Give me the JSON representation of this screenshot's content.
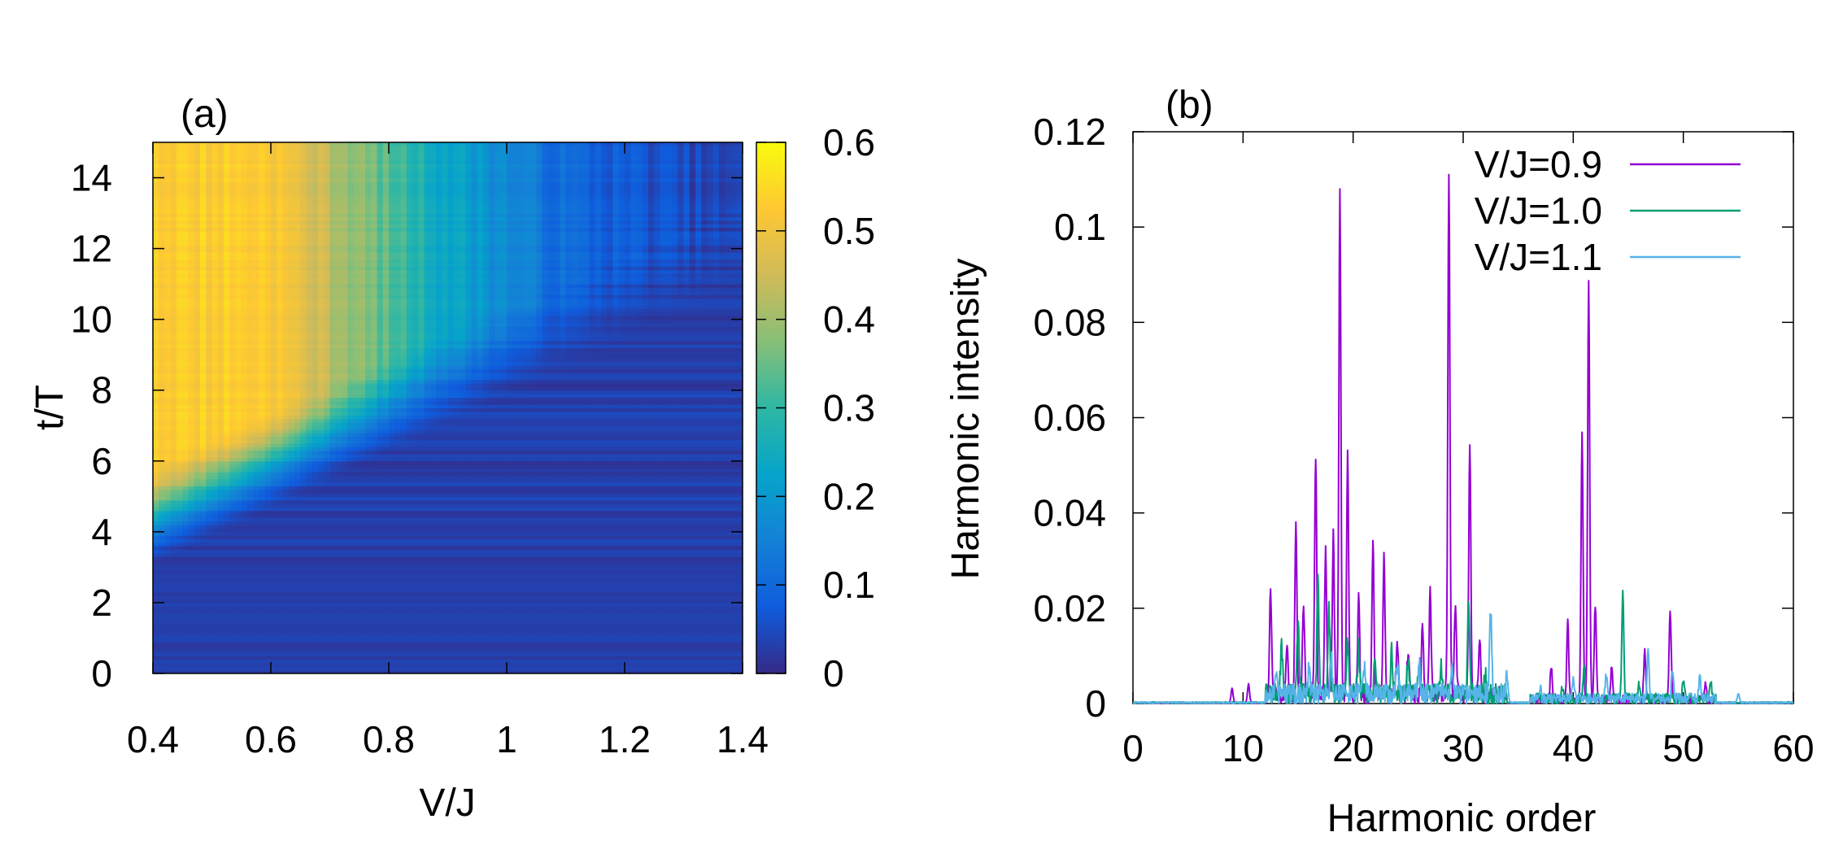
{
  "chart_data": [
    {
      "panel_label": "(a)",
      "type": "heatmap",
      "title": "",
      "xlabel": "V/J",
      "ylabel": "t/T",
      "xlim": [
        0.4,
        1.4
      ],
      "ylim": [
        0,
        15
      ],
      "x_ticks": [
        0.4,
        0.6,
        0.8,
        1.0,
        1.2,
        1.4
      ],
      "x_tick_labels": [
        "0.4",
        "0.6",
        "0.8",
        "1",
        "1.2",
        "1.4"
      ],
      "y_ticks": [
        0,
        2,
        4,
        6,
        8,
        10,
        12,
        14
      ],
      "y_tick_labels": [
        "0",
        "2",
        "4",
        "6",
        "8",
        "10",
        "12",
        "14"
      ],
      "colorbar": {
        "range": [
          0,
          0.6
        ],
        "ticks": [
          0,
          0.1,
          0.2,
          0.3,
          0.4,
          0.5,
          0.6
        ],
        "tick_labels": [
          "0",
          "0.1",
          "0.2",
          "0.3",
          "0.4",
          "0.5",
          "0.6"
        ],
        "colormap": [
          "#352a87",
          "#0f5cdd",
          "#1481d6",
          "#06a4ca",
          "#2eb7a4",
          "#87bf77",
          "#d1bb59",
          "#fec832",
          "#f9fb0e"
        ]
      },
      "data_description": {
        "plateau_value": 0.53,
        "onset_t_at_left": 4.5,
        "onset_slope_t_per_VJ": 13,
        "plateau_edge_VJ": [
          0.6,
          0.88,
          1.1
        ],
        "low_value_region_value": 0.03
      }
    },
    {
      "panel_label": "(b)",
      "type": "line",
      "title": "",
      "xlabel": "Harmonic order",
      "ylabel": "Harmonic intensity",
      "xlim": [
        0,
        60
      ],
      "ylim": [
        0,
        0.12
      ],
      "x_ticks": [
        0,
        10,
        20,
        30,
        40,
        50,
        60
      ],
      "x_tick_labels": [
        "0",
        "10",
        "20",
        "30",
        "40",
        "50",
        "60"
      ],
      "y_ticks": [
        0,
        0.02,
        0.04,
        0.06,
        0.08,
        0.1,
        0.12
      ],
      "y_tick_labels": [
        "0",
        "0.02",
        "0.04",
        "0.06",
        "0.08",
        "0.1",
        "0.12"
      ],
      "legend_position": "top-right",
      "series": [
        {
          "name": "V/J=0.9",
          "color": "#9400d3",
          "peaks": [
            [
              9,
              0.003
            ],
            [
              10.5,
              0.004
            ],
            [
              12.5,
              0.023
            ],
            [
              14,
              0.01
            ],
            [
              14.8,
              0.036
            ],
            [
              15.5,
              0.02
            ],
            [
              16.6,
              0.05
            ],
            [
              17.5,
              0.03
            ],
            [
              18.2,
              0.034
            ],
            [
              18.8,
              0.105
            ],
            [
              19.5,
              0.05
            ],
            [
              20.5,
              0.02
            ],
            [
              21.8,
              0.032
            ],
            [
              22.8,
              0.029
            ],
            [
              24,
              0.012
            ],
            [
              25,
              0.01
            ],
            [
              26.3,
              0.016
            ],
            [
              27,
              0.023
            ],
            [
              28.7,
              0.111
            ],
            [
              29.3,
              0.02
            ],
            [
              30.6,
              0.053
            ],
            [
              31.5,
              0.012
            ],
            [
              38,
              0.007
            ],
            [
              39.5,
              0.016
            ],
            [
              40.8,
              0.056
            ],
            [
              41.4,
              0.087
            ],
            [
              42,
              0.02
            ],
            [
              43.5,
              0.007
            ],
            [
              46.5,
              0.01
            ],
            [
              48.8,
              0.019
            ],
            [
              52,
              0.003
            ]
          ]
        },
        {
          "name": "V/J=1.0",
          "color": "#009e73",
          "peaks": [
            [
              13.5,
              0.01
            ],
            [
              15,
              0.015
            ],
            [
              16.8,
              0.024
            ],
            [
              17.8,
              0.018
            ],
            [
              19.5,
              0.012
            ],
            [
              20.5,
              0.01
            ],
            [
              22,
              0.008
            ],
            [
              23.5,
              0.009
            ],
            [
              25,
              0.008
            ],
            [
              26,
              0.007
            ],
            [
              28,
              0.006
            ],
            [
              30.5,
              0.02
            ],
            [
              32,
              0.004
            ],
            [
              39,
              0.002
            ],
            [
              41,
              0.007
            ],
            [
              44.5,
              0.022
            ],
            [
              46,
              0.003
            ],
            [
              50,
              0.004
            ],
            [
              52.5,
              0.003
            ]
          ]
        },
        {
          "name": "V/J=1.1",
          "color": "#56b4e9",
          "peaks": [
            [
              13,
              0.004
            ],
            [
              16,
              0.006
            ],
            [
              18,
              0.008
            ],
            [
              21,
              0.006
            ],
            [
              24,
              0.007
            ],
            [
              26,
              0.006
            ],
            [
              29,
              0.006
            ],
            [
              32.5,
              0.018
            ],
            [
              34,
              0.005
            ],
            [
              37,
              0.002
            ],
            [
              40,
              0.004
            ],
            [
              43,
              0.005
            ],
            [
              46.8,
              0.011
            ],
            [
              49,
              0.006
            ],
            [
              51.5,
              0.005
            ],
            [
              55,
              0.002
            ]
          ]
        }
      ]
    }
  ]
}
